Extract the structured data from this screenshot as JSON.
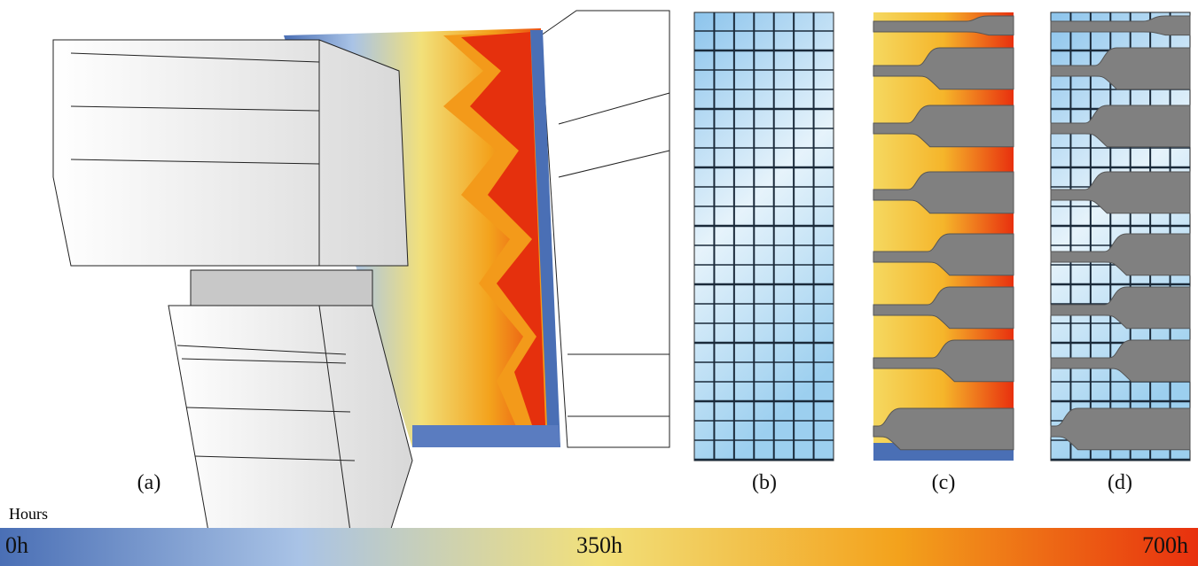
{
  "panels": [
    {
      "label": "(a)"
    },
    {
      "label": "(b)"
    },
    {
      "label": "(c)"
    },
    {
      "label": "(d)"
    }
  ],
  "colorbar": {
    "title": "Hours",
    "labels": [
      "0h",
      "350h",
      "700h"
    ]
  }
}
